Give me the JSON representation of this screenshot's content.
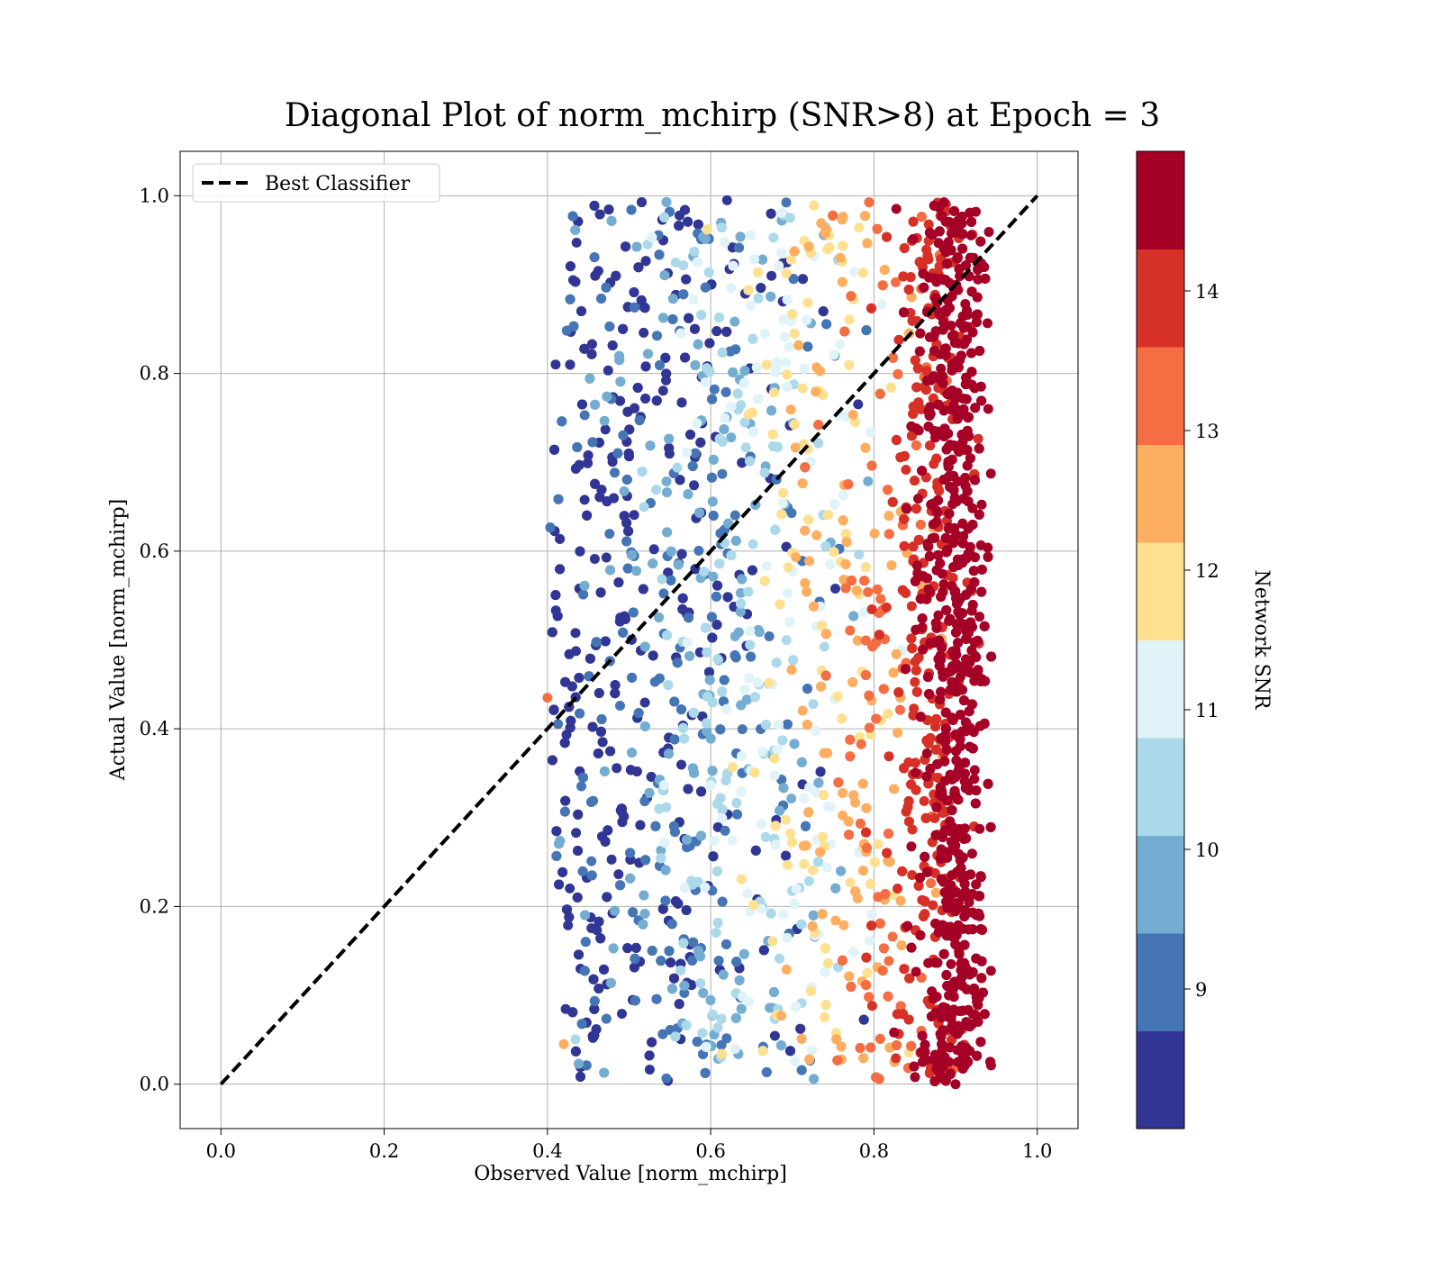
{
  "chart_data": {
    "type": "scatter",
    "title": "Diagonal Plot of norm_mchirp (SNR>8) at Epoch = 3",
    "xlabel": "Observed Value [norm_mchirp]",
    "ylabel": "Actual Value [norm_mchirp]",
    "xlim": [
      -0.05,
      1.05
    ],
    "ylim": [
      -0.05,
      1.05
    ],
    "xticks": [
      "0.0",
      "0.2",
      "0.4",
      "0.6",
      "0.8",
      "1.0"
    ],
    "yticks": [
      "0.0",
      "0.2",
      "0.4",
      "0.6",
      "0.8",
      "1.0"
    ],
    "grid": true,
    "legend": {
      "position": "top-left",
      "entries": [
        "Best Classifier"
      ]
    },
    "reference_line": {
      "name": "Best Classifier",
      "style": "dashed",
      "color": "#000000",
      "x": [
        0,
        1
      ],
      "y": [
        0,
        1
      ]
    },
    "colorbar": {
      "label": "Network SNR",
      "range": [
        8,
        15
      ],
      "ticks": [
        "9",
        "10",
        "11",
        "12",
        "13",
        "14"
      ],
      "colors": [
        "#313695",
        "#4575b4",
        "#74add1",
        "#abd9e9",
        "#e0f3f8",
        "#fee090",
        "#fdae61",
        "#f46d43",
        "#d73027",
        "#a50026"
      ]
    },
    "point_cloud": {
      "x_range": [
        0.4,
        0.95
      ],
      "y_range": [
        0.0,
        1.0
      ],
      "description_points": [
        {
          "x": 0.4,
          "y": 0.435,
          "snr": 13.2
        },
        {
          "x": 0.42,
          "y": 0.045,
          "snr": 12.5
        },
        {
          "x": 0.41,
          "y": 0.81,
          "snr": 8.3
        },
        {
          "x": 0.62,
          "y": 0.995,
          "snr": 8.3
        },
        {
          "x": 0.9,
          "y": 0.0,
          "snr": 14.8
        },
        {
          "x": 0.94,
          "y": 0.76,
          "snr": 14.8
        }
      ]
    }
  }
}
